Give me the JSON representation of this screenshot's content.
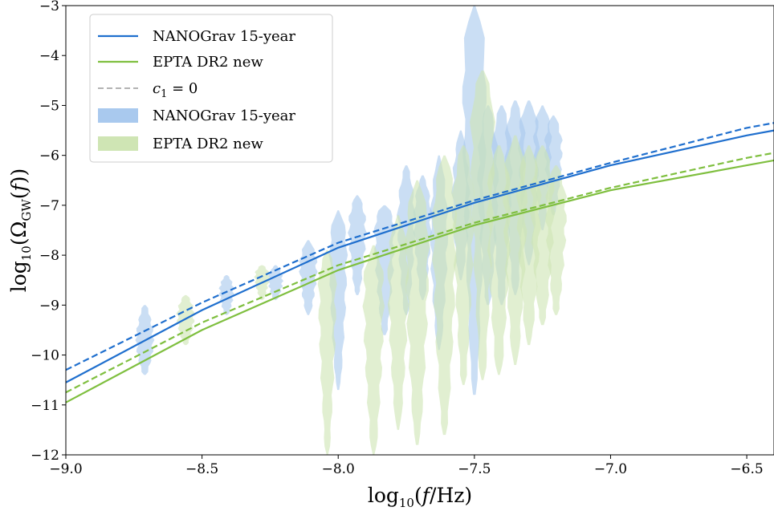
{
  "chart_data": {
    "type": "line",
    "xlabel": "log10(f/Hz)",
    "ylabel": "log10(ΩGW(f))",
    "xlim": [
      -9.0,
      -6.4
    ],
    "ylim": [
      -12,
      -3
    ],
    "x_ticks": [
      {
        "value": -9.0,
        "label": "−9.0"
      },
      {
        "value": -8.5,
        "label": "−8.5"
      },
      {
        "value": -8.0,
        "label": "−8.0"
      },
      {
        "value": -7.5,
        "label": "−7.5"
      },
      {
        "value": -7.0,
        "label": "−7.0"
      },
      {
        "value": -6.5,
        "label": "−6.5"
      }
    ],
    "y_ticks": [
      {
        "value": -3,
        "label": "−3"
      },
      {
        "value": -4,
        "label": "−4"
      },
      {
        "value": -5,
        "label": "−5"
      },
      {
        "value": -6,
        "label": "−6"
      },
      {
        "value": -7,
        "label": "−7"
      },
      {
        "value": -8,
        "label": "−8"
      },
      {
        "value": -9,
        "label": "−9"
      },
      {
        "value": -10,
        "label": "−10"
      },
      {
        "value": -11,
        "label": "−11"
      },
      {
        "value": -12,
        "label": "−12"
      }
    ],
    "grid": false,
    "legend_position": "top-left",
    "legend": [
      {
        "label": "NANOGrav 15-year",
        "style": "solid-line",
        "color": "#1f6fce"
      },
      {
        "label": "EPTA DR2 new",
        "style": "solid-line",
        "color": "#7fbf3f"
      },
      {
        "label": "c1 = 0",
        "style": "dashed-line",
        "color": "#b3b3b3"
      },
      {
        "label": "NANOGrav 15-year",
        "style": "band",
        "color": "#a9c9ee"
      },
      {
        "label": "EPTA DR2 new",
        "style": "band",
        "color": "#cfe5b4"
      }
    ],
    "series": [
      {
        "name": "NANOGrav 15-year",
        "kind": "line",
        "dash": false,
        "color": "#1f6fce",
        "x": [
          -9.0,
          -8.5,
          -8.0,
          -7.5,
          -7.0,
          -6.5,
          -6.4
        ],
        "y": [
          -10.55,
          -9.1,
          -7.85,
          -6.95,
          -6.2,
          -5.6,
          -5.5
        ]
      },
      {
        "name": "NANOGrav 15-year",
        "kind": "line",
        "dash": true,
        "color": "#1f6fce",
        "x": [
          -9.0,
          -8.5,
          -8.0,
          -7.5,
          -7.0,
          -6.5,
          -6.4
        ],
        "y": [
          -10.3,
          -8.95,
          -7.75,
          -6.9,
          -6.15,
          -5.45,
          -5.35
        ]
      },
      {
        "name": "EPTA DR2 new",
        "kind": "line",
        "dash": false,
        "color": "#7fbf3f",
        "x": [
          -9.0,
          -8.5,
          -8.0,
          -7.5,
          -7.0,
          -6.5,
          -6.4
        ],
        "y": [
          -10.95,
          -9.5,
          -8.3,
          -7.4,
          -6.7,
          -6.2,
          -6.1
        ]
      },
      {
        "name": "EPTA DR2 new",
        "kind": "line",
        "dash": true,
        "color": "#7fbf3f",
        "x": [
          -9.0,
          -8.5,
          -8.0,
          -7.5,
          -7.0,
          -6.5,
          -6.4
        ],
        "y": [
          -10.75,
          -9.35,
          -8.2,
          -7.35,
          -6.65,
          -6.05,
          -5.95
        ]
      }
    ],
    "violins": [
      {
        "name": "NANOGrav 15-year",
        "color": "#a9c9ee",
        "x": -8.71,
        "ytop": -9.0,
        "ybot": -10.4,
        "peak": -9.7,
        "w": 0.03
      },
      {
        "name": "NANOGrav 15-year",
        "color": "#a9c9ee",
        "x": -8.41,
        "ytop": -8.4,
        "ybot": -9.2,
        "peak": -8.7,
        "w": 0.025
      },
      {
        "name": "NANOGrav 15-year",
        "color": "#a9c9ee",
        "x": -8.23,
        "ytop": -8.2,
        "ybot": -8.9,
        "peak": -8.5,
        "w": 0.025
      },
      {
        "name": "NANOGrav 15-year",
        "color": "#a9c9ee",
        "x": -8.11,
        "ytop": -7.7,
        "ybot": -9.2,
        "peak": -8.2,
        "w": 0.03
      },
      {
        "name": "NANOGrav 15-year",
        "color": "#a9c9ee",
        "x": -8.0,
        "ytop": -7.1,
        "ybot": -10.7,
        "peak": -7.8,
        "w": 0.03
      },
      {
        "name": "NANOGrav 15-year",
        "color": "#a9c9ee",
        "x": -7.93,
        "ytop": -6.8,
        "ybot": -8.8,
        "peak": -7.4,
        "w": 0.03
      },
      {
        "name": "NANOGrav 15-year",
        "color": "#a9c9ee",
        "x": -7.83,
        "ytop": -7.0,
        "ybot": -9.6,
        "peak": -7.4,
        "w": 0.035
      },
      {
        "name": "NANOGrav 15-year",
        "color": "#a9c9ee",
        "x": -7.75,
        "ytop": -6.2,
        "ybot": -9.2,
        "peak": -7.2,
        "w": 0.03
      },
      {
        "name": "NANOGrav 15-year",
        "color": "#a9c9ee",
        "x": -7.69,
        "ytop": -6.4,
        "ybot": -8.9,
        "peak": -7.2,
        "w": 0.03
      },
      {
        "name": "NANOGrav 15-year",
        "color": "#a9c9ee",
        "x": -7.63,
        "ytop": -6.0,
        "ybot": -9.9,
        "peak": -7.4,
        "w": 0.03
      },
      {
        "name": "NANOGrav 15-year",
        "color": "#a9c9ee",
        "x": -7.55,
        "ytop": -5.5,
        "ybot": -8.5,
        "peak": -6.8,
        "w": 0.03
      },
      {
        "name": "NANOGrav 15-year",
        "color": "#a9c9ee",
        "x": -7.5,
        "ytop": -3.0,
        "ybot": -10.8,
        "peak": -4.2,
        "w": 0.04
      },
      {
        "name": "NANOGrav 15-year",
        "color": "#a9c9ee",
        "x": -7.45,
        "ytop": -5.0,
        "ybot": -9.0,
        "peak": -6.2,
        "w": 0.035
      },
      {
        "name": "NANOGrav 15-year",
        "color": "#a9c9ee",
        "x": -7.4,
        "ytop": -5.0,
        "ybot": -9.0,
        "peak": -6.0,
        "w": 0.035
      },
      {
        "name": "NANOGrav 15-year",
        "color": "#a9c9ee",
        "x": -7.35,
        "ytop": -4.9,
        "ybot": -8.8,
        "peak": -5.8,
        "w": 0.035
      },
      {
        "name": "NANOGrav 15-year",
        "color": "#a9c9ee",
        "x": -7.3,
        "ytop": -4.9,
        "ybot": -8.2,
        "peak": -5.6,
        "w": 0.035
      },
      {
        "name": "NANOGrav 15-year",
        "color": "#a9c9ee",
        "x": -7.25,
        "ytop": -5.0,
        "ybot": -7.5,
        "peak": -5.6,
        "w": 0.03
      },
      {
        "name": "NANOGrav 15-year",
        "color": "#a9c9ee",
        "x": -7.21,
        "ytop": -5.2,
        "ybot": -7.2,
        "peak": -5.8,
        "w": 0.03
      },
      {
        "name": "EPTA DR2 new",
        "color": "#cfe5b4",
        "x": -8.56,
        "ytop": -8.8,
        "ybot": -9.8,
        "peak": -9.2,
        "w": 0.03
      },
      {
        "name": "EPTA DR2 new",
        "color": "#cfe5b4",
        "x": -8.28,
        "ytop": -8.2,
        "ybot": -8.9,
        "peak": -8.4,
        "w": 0.025
      },
      {
        "name": "EPTA DR2 new",
        "color": "#cfe5b4",
        "x": -8.04,
        "ytop": -7.9,
        "ybot": -12.0,
        "peak": -8.5,
        "w": 0.03
      },
      {
        "name": "EPTA DR2 new",
        "color": "#cfe5b4",
        "x": -7.87,
        "ytop": -7.8,
        "ybot": -12.0,
        "peak": -8.6,
        "w": 0.035
      },
      {
        "name": "EPTA DR2 new",
        "color": "#cfe5b4",
        "x": -7.78,
        "ytop": -7.2,
        "ybot": -11.5,
        "peak": -8.2,
        "w": 0.035
      },
      {
        "name": "EPTA DR2 new",
        "color": "#cfe5b4",
        "x": -7.71,
        "ytop": -6.5,
        "ybot": -11.8,
        "peak": -7.6,
        "w": 0.04
      },
      {
        "name": "EPTA DR2 new",
        "color": "#cfe5b4",
        "x": -7.61,
        "ytop": -6.0,
        "ybot": -11.6,
        "peak": -7.2,
        "w": 0.04
      },
      {
        "name": "EPTA DR2 new",
        "color": "#cfe5b4",
        "x": -7.54,
        "ytop": -5.8,
        "ybot": -10.6,
        "peak": -6.8,
        "w": 0.035
      },
      {
        "name": "EPTA DR2 new",
        "color": "#cfe5b4",
        "x": -7.47,
        "ytop": -4.3,
        "ybot": -10.5,
        "peak": -5.2,
        "w": 0.04
      },
      {
        "name": "EPTA DR2 new",
        "color": "#cfe5b4",
        "x": -7.41,
        "ytop": -5.8,
        "ybot": -10.4,
        "peak": -6.8,
        "w": 0.04
      },
      {
        "name": "EPTA DR2 new",
        "color": "#cfe5b4",
        "x": -7.35,
        "ytop": -5.6,
        "ybot": -10.2,
        "peak": -6.6,
        "w": 0.04
      },
      {
        "name": "EPTA DR2 new",
        "color": "#cfe5b4",
        "x": -7.3,
        "ytop": -5.8,
        "ybot": -9.8,
        "peak": -6.8,
        "w": 0.04
      },
      {
        "name": "EPTA DR2 new",
        "color": "#cfe5b4",
        "x": -7.25,
        "ytop": -5.8,
        "ybot": -9.4,
        "peak": -6.8,
        "w": 0.04
      },
      {
        "name": "EPTA DR2 new",
        "color": "#cfe5b4",
        "x": -7.2,
        "ytop": -6.2,
        "ybot": -9.2,
        "peak": -7.0,
        "w": 0.035
      }
    ]
  }
}
